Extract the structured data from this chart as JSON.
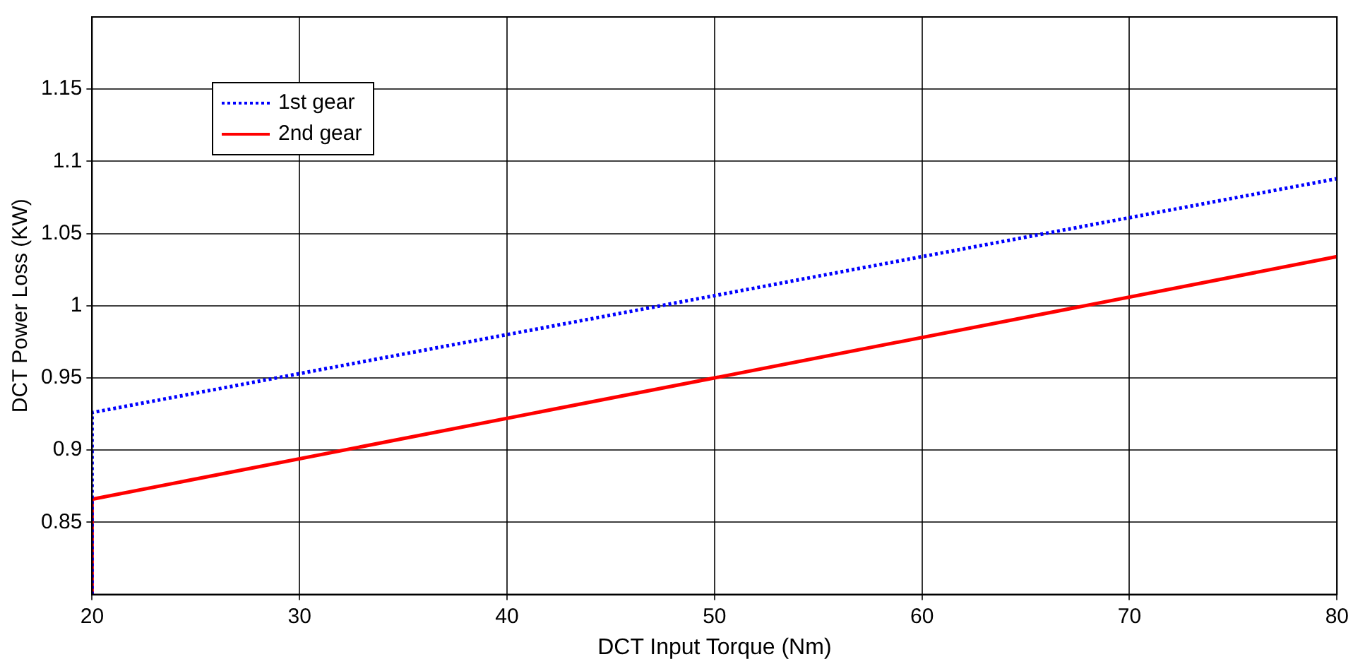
{
  "chart_data": {
    "type": "line",
    "xlabel": "DCT Input Torque (Nm)",
    "ylabel": "DCT Power Loss (KW)",
    "xlim": [
      20,
      80
    ],
    "xticks": [
      20,
      30,
      40,
      50,
      60,
      70,
      80
    ],
    "ylim": [
      0.8,
      1.2
    ],
    "yticks": [
      0.85,
      0.9,
      0.95,
      1,
      1.05,
      1.1,
      1.15
    ],
    "grid": true,
    "legend": "top left",
    "marker": "none",
    "series": [
      {
        "name": "1st gear",
        "color": "#0000ff",
        "line_style": "dotted",
        "x": [
          20,
          20,
          50,
          80
        ],
        "values": [
          0.8,
          0.926,
          1.007,
          1.088
        ]
      },
      {
        "name": "2nd gear",
        "color": "#ff0000",
        "line_style": "solid",
        "x": [
          20,
          20,
          50,
          80
        ],
        "values": [
          0.8,
          0.866,
          0.95,
          1.034
        ]
      }
    ]
  }
}
